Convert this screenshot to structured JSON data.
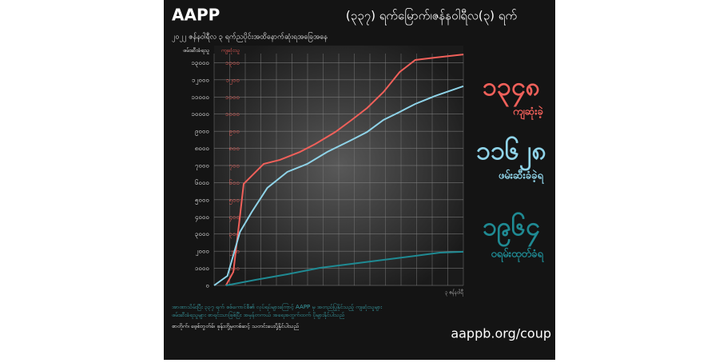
{
  "brand": "AAPP",
  "chart_data": {
    "type": "line",
    "title": "(၃၃၇) ရက်မြောက်၊ဇန်နဝါရီလ(၃) ရက်",
    "subtitle": "၂၀၂၂ ဇန်နဝါရီလ ၃ ရက်ညပိုင်းအထိနောက်ဆုံးရအခြေအနေ",
    "y_label": "ဖမ်းဆီးခံရသူ",
    "y2_label": "ကျဆုံးသူ",
    "x_end_label": "၃ ဇန်နဝါရီ",
    "xlim": [
      0,
      337
    ],
    "ylim": [
      0,
      14000
    ],
    "y2lim": [
      0,
      1400
    ],
    "yticks": [
      {
        "value": 0,
        "label": "၀"
      },
      {
        "value": 1000,
        "label": "၁၀၀၀"
      },
      {
        "value": 2000,
        "label": "၂၀၀၀"
      },
      {
        "value": 3000,
        "label": "၃၀၀၀"
      },
      {
        "value": 4000,
        "label": "၄၀၀၀"
      },
      {
        "value": 5000,
        "label": "၅၀၀၀"
      },
      {
        "value": 6000,
        "label": "၆၀၀၀"
      },
      {
        "value": 7000,
        "label": "၇၀၀၀"
      },
      {
        "value": 8000,
        "label": "၈၀၀၀"
      },
      {
        "value": 9000,
        "label": "၉၀၀၀"
      },
      {
        "value": 10000,
        "label": "၁၀၀၀၀"
      },
      {
        "value": 11000,
        "label": "၁၁၀၀၀"
      },
      {
        "value": 12000,
        "label": "၁၂၀၀၀"
      },
      {
        "value": 13000,
        "label": "၁၃၀၀၀"
      }
    ],
    "y2ticks": [
      {
        "value": 100,
        "label": "၁၀၀"
      },
      {
        "value": 200,
        "label": "၂၀၀"
      },
      {
        "value": 300,
        "label": "၃၀၀"
      },
      {
        "value": 400,
        "label": "၄၀၀"
      },
      {
        "value": 500,
        "label": "၅၀၀"
      },
      {
        "value": 600,
        "label": "၆၀၀"
      },
      {
        "value": 700,
        "label": "၇၀၀"
      },
      {
        "value": 800,
        "label": "၈၀၀"
      },
      {
        "value": 900,
        "label": "၉၀၀"
      },
      {
        "value": 1000,
        "label": "၁၀၀၀"
      },
      {
        "value": 1100,
        "label": "၁၁၀၀"
      },
      {
        "value": 1200,
        "label": "၁၂၀၀"
      },
      {
        "value": 1300,
        "label": "၁၃၀၀"
      }
    ],
    "grid": true,
    "series": [
      {
        "name": "ကျဆုံးခဲ့",
        "color": "#f0605a",
        "axis": "y2",
        "x": [
          16,
          26,
          35,
          40,
          67,
          89,
          116,
          137,
          164,
          186,
          207,
          229,
          251,
          272,
          299,
          337
        ],
        "values": [
          0,
          79,
          406,
          593,
          709,
          733,
          779,
          826,
          896,
          966,
          1036,
          1129,
          1246,
          1316,
          1330,
          1348
        ],
        "total": {
          "value": 1348,
          "label": "၁၃၄၈"
        }
      },
      {
        "name": "ဖမ်းဆီးခံခဲ့ရ",
        "color": "#8fd3e8",
        "axis": "y",
        "x": [
          0,
          18,
          35,
          51,
          72,
          99,
          126,
          153,
          186,
          207,
          229,
          251,
          272,
          299,
          337
        ],
        "values": [
          0,
          560,
          3127,
          4293,
          5694,
          6627,
          7094,
          7794,
          8494,
          8961,
          9661,
          10128,
          10594,
          11061,
          11628
        ],
        "total": {
          "value": 11628,
          "label": "၁၁၆၂၈"
        }
      },
      {
        "name": "ဝရမ်းထုတ်ခံရ",
        "color": "#1f8a93",
        "axis": "y",
        "x": [
          16,
          56,
          99,
          143,
          186,
          229,
          272,
          305,
          337
        ],
        "values": [
          0,
          327,
          653,
          1027,
          1260,
          1493,
          1727,
          1913,
          1964
        ],
        "total": {
          "value": 1964,
          "label": "၁၉၆၄"
        }
      }
    ]
  },
  "footer": [
    "အာဏာသိမ်းပြီး ၃၃၇ ရက် စစ်ကောင်စီ၏ လုပ်ရပ်များကြောင့် AAPP မှ အတည်ပြုနိုင်သည့် ကျဆုံးသူများ",
    "ဖမ်းဆီးခံရသူများ စာရင်းသာဖြစ်ပြီး အမှန်တကယ် အရေအတွက်ထက် ပိုများနိုင်ပါသည်",
    "စာတိုက်၊ ဖေ့စ်ဘွတ်ခ်၊ ဖုန်းတို့မှတစ်ဆင့် သတင်းပေးပို့နိုင်ပါသည်"
  ],
  "url": "aappb.org/coup"
}
